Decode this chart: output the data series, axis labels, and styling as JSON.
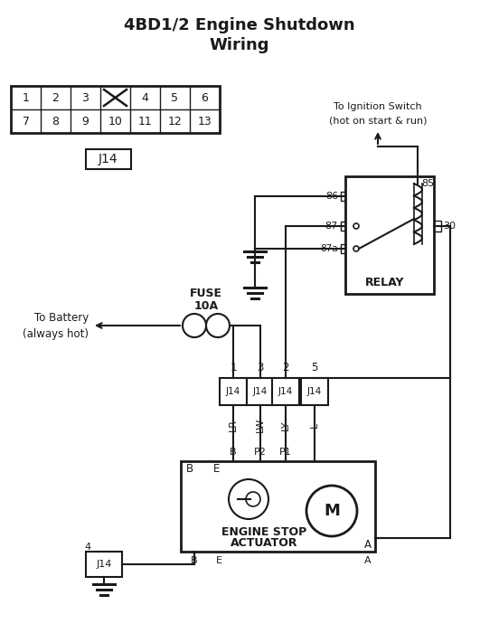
{
  "title_line1": "4BD1/2 Engine Shutdown",
  "title_line2": "Wiring",
  "bg_color": "#ffffff",
  "lc": "#1a1a1a",
  "figsize": [
    5.31,
    7.0
  ],
  "dpi": 100,
  "conn_pins_row1": [
    "1",
    "2",
    "3",
    "",
    "4",
    "5",
    "6"
  ],
  "conn_pins_row2": [
    "7",
    "8",
    "9",
    "10",
    "11",
    "12",
    "13"
  ],
  "j14_labels_4": [
    "1",
    "3",
    "2",
    "5"
  ],
  "wire_labels": [
    "LR",
    "LW",
    "LY",
    "L"
  ],
  "term_labels": [
    "B",
    "P2",
    "P1",
    ""
  ],
  "relay_label": "RELAY",
  "fuse_labels": [
    "10A",
    "FUSE"
  ],
  "battery_label1": "To Battery",
  "battery_label2": "(always hot)",
  "ign_label1": "To Ignition Switch",
  "ign_label2": "(hot on start & run)",
  "actuator_label1": "ENGINE STOP",
  "actuator_label2": "ACTUATOR",
  "motor_label": "M",
  "j14_text": "J14"
}
